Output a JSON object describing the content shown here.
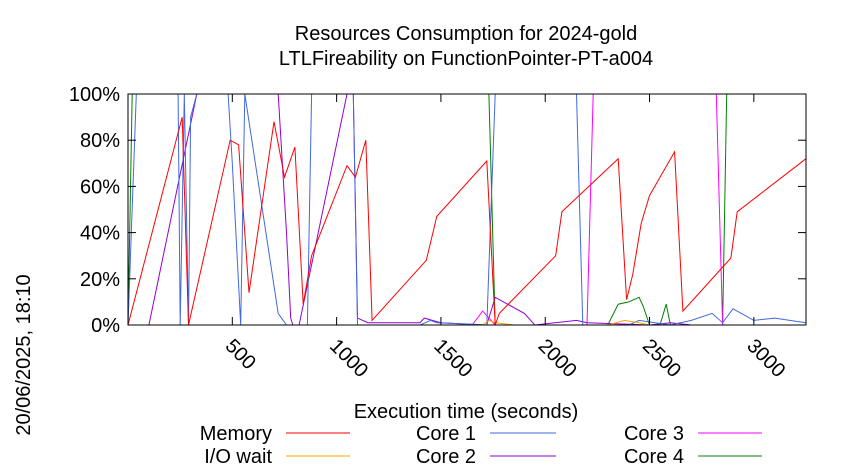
{
  "chart_data": {
    "type": "line",
    "title": "Resources Consumption for 2024-gold",
    "subtitle": "LTLFireability on FunctionPointer-PT-a004",
    "xlabel": "Execution time (seconds)",
    "ylabel": "",
    "side_label": "20/06/2025, 18:10",
    "xlim": [
      0,
      3250
    ],
    "ylim": [
      0,
      100
    ],
    "x_ticks": [
      500,
      1000,
      1500,
      2000,
      2500,
      3000
    ],
    "x_tick_labels": [
      "500",
      "1000",
      "1500",
      "2000",
      "2500",
      "3000"
    ],
    "y_ticks": [
      0,
      20,
      40,
      60,
      80,
      100
    ],
    "y_tick_labels": [
      "0%",
      "20%",
      "40%",
      "60%",
      "80%",
      "100%"
    ],
    "grid": false,
    "legend_position": "bottom",
    "series": [
      {
        "name": "Memory",
        "color": "#ff0000",
        "x": [
          0,
          260,
          290,
          490,
          530,
          580,
          700,
          750,
          800,
          840,
          880,
          1050,
          1090,
          1140,
          1170,
          1430,
          1480,
          1720,
          1760,
          1780,
          2050,
          2080,
          2350,
          2390,
          2420,
          2460,
          2500,
          2620,
          2660,
          2890,
          2920,
          3250
        ],
        "y": [
          0,
          90,
          0,
          80,
          78,
          14,
          88,
          64,
          77,
          9,
          30,
          69,
          64,
          80,
          2,
          28,
          47,
          71,
          0,
          5,
          30,
          49,
          72,
          11,
          22,
          44,
          56,
          75,
          6,
          29,
          49,
          72
        ]
      },
      {
        "name": "I/O wait",
        "color": "#ffa500",
        "x": [
          0,
          1700,
          1730,
          1760,
          1850,
          1900,
          2300,
          2380,
          2450,
          2500,
          2600,
          3250
        ],
        "y": [
          0,
          0,
          2,
          1,
          0,
          0,
          0,
          2,
          1,
          0,
          0,
          0
        ]
      },
      {
        "name": "Core 1",
        "color": "#4169e1",
        "x": [
          0,
          40,
          240,
          250,
          270,
          290,
          300,
          330,
          350,
          480,
          500,
          540,
          560,
          720,
          760,
          780,
          860,
          880,
          910,
          1080,
          1100,
          1140,
          1170,
          1400,
          1450,
          1480,
          1720,
          1760,
          2150,
          2180,
          2400,
          2450,
          2600,
          2700,
          2800,
          2850,
          2900,
          3000,
          3100,
          3250
        ],
        "y": [
          0,
          100,
          100,
          0,
          100,
          0,
          90,
          100,
          100,
          100,
          70,
          0,
          100,
          5,
          0,
          0,
          0,
          100,
          100,
          100,
          0,
          0,
          0,
          0,
          2,
          1,
          0,
          100,
          100,
          0,
          0,
          2,
          0,
          2,
          5,
          1,
          7,
          2,
          3,
          1
        ]
      },
      {
        "name": "Core 2",
        "color": "#9400d3",
        "x": [
          0,
          100,
          330,
          380,
          450,
          600,
          650,
          680,
          700,
          720,
          760,
          780,
          790,
          800,
          820,
          1050,
          1080,
          1100,
          1150,
          1400,
          1420,
          1500,
          1720,
          1760,
          1800,
          1900,
          1950,
          2150,
          2200,
          2500,
          2600,
          2700,
          3250
        ],
        "y": [
          0,
          0,
          100,
          100,
          100,
          100,
          100,
          100,
          100,
          100,
          40,
          3,
          0,
          0,
          0,
          100,
          100,
          3,
          1,
          1,
          3,
          1,
          0,
          12,
          10,
          5,
          0,
          2,
          1,
          0,
          1,
          0,
          0
        ]
      },
      {
        "name": "Core 3",
        "color": "#ff00ff",
        "x": [
          0,
          1650,
          1700,
          1760,
          2150,
          2200,
          2230,
          2250,
          2800,
          2820,
          2850,
          3250
        ],
        "y": [
          0,
          0,
          6,
          0,
          0,
          0,
          100,
          100,
          100,
          100,
          0,
          0
        ]
      },
      {
        "name": "Core 4",
        "color": "#008000",
        "x": [
          0,
          20,
          50,
          1700,
          1730,
          1760,
          2300,
          2350,
          2400,
          2450,
          2470,
          2500,
          2550,
          2580,
          2600,
          2680,
          2700,
          2850,
          2870,
          3250
        ],
        "y": [
          0,
          100,
          100,
          100,
          100,
          0,
          0,
          9,
          10,
          12,
          8,
          0,
          0,
          9,
          0,
          0,
          0,
          0,
          100,
          100
        ]
      }
    ]
  }
}
